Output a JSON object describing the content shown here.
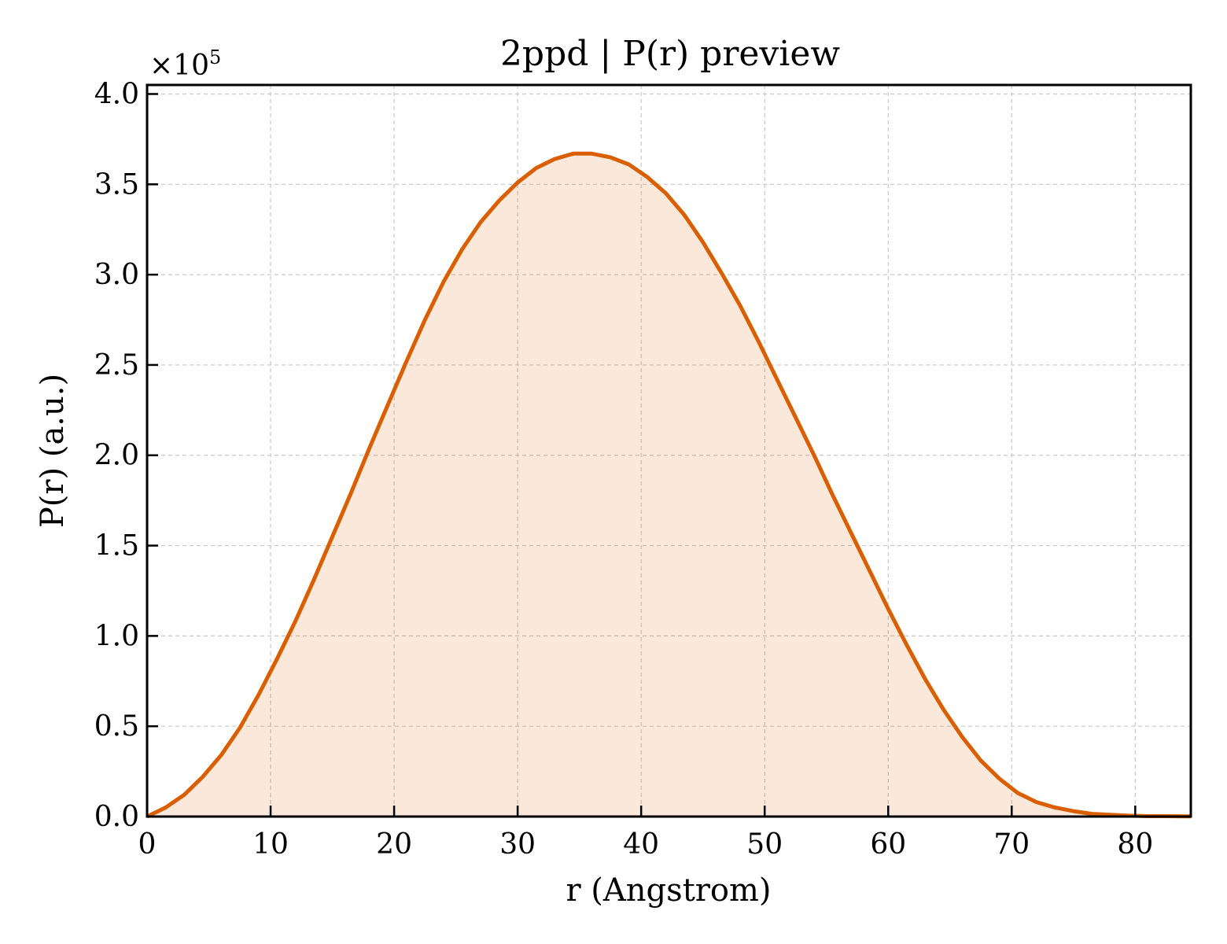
{
  "chart_data": {
    "type": "area",
    "title": "2ppd | P(r) preview",
    "xlabel": "r (Angstrom)",
    "ylabel": "P(r) (a.u.)",
    "y_offset_prefix": "×10",
    "y_offset_exponent": "5",
    "xlim": [
      0,
      84.5
    ],
    "ylim": [
      0,
      4.05
    ],
    "y_scale_factor": 100000,
    "x_ticks": [
      0,
      10,
      20,
      30,
      40,
      50,
      60,
      70,
      80
    ],
    "x_tick_labels": [
      "0",
      "10",
      "20",
      "30",
      "40",
      "50",
      "60",
      "70",
      "80"
    ],
    "y_ticks": [
      0,
      0.5,
      1.0,
      1.5,
      2.0,
      2.5,
      3.0,
      3.5,
      4.0
    ],
    "y_tick_labels": [
      "0.0",
      "0.5",
      "1.0",
      "1.5",
      "2.0",
      "2.5",
      "3.0",
      "3.5",
      "4.0"
    ],
    "grid": true,
    "line_color": "#d95f02",
    "fill_color": "#d95f02",
    "fill_opacity": 0.14,
    "series": [
      {
        "x": [
          0,
          1.5,
          3,
          4.5,
          6,
          7.5,
          9,
          10.5,
          12,
          13.5,
          15,
          16.5,
          18,
          19.5,
          21,
          22.5,
          24,
          25.5,
          27,
          28.5,
          30,
          31.5,
          33,
          34.5,
          36,
          37.5,
          39,
          40.5,
          42,
          43.5,
          45,
          46.5,
          48,
          49.5,
          51,
          52.5,
          54,
          55.5,
          57,
          58.5,
          60,
          61.5,
          63,
          64.5,
          66,
          67.5,
          69,
          70.5,
          72,
          73.5,
          75,
          76.5,
          78,
          79.5,
          81,
          82.5,
          84
        ],
        "values": [
          0.0,
          0.05,
          0.12,
          0.22,
          0.34,
          0.49,
          0.67,
          0.87,
          1.08,
          1.31,
          1.55,
          1.79,
          2.04,
          2.28,
          2.52,
          2.75,
          2.96,
          3.14,
          3.29,
          3.41,
          3.51,
          3.59,
          3.64,
          3.67,
          3.67,
          3.65,
          3.61,
          3.54,
          3.45,
          3.33,
          3.18,
          3.01,
          2.83,
          2.63,
          2.42,
          2.21,
          2.0,
          1.78,
          1.57,
          1.36,
          1.15,
          0.95,
          0.76,
          0.59,
          0.44,
          0.31,
          0.21,
          0.13,
          0.08,
          0.05,
          0.03,
          0.015,
          0.01,
          0.005,
          0.002,
          0.002,
          0.001
        ]
      }
    ]
  }
}
